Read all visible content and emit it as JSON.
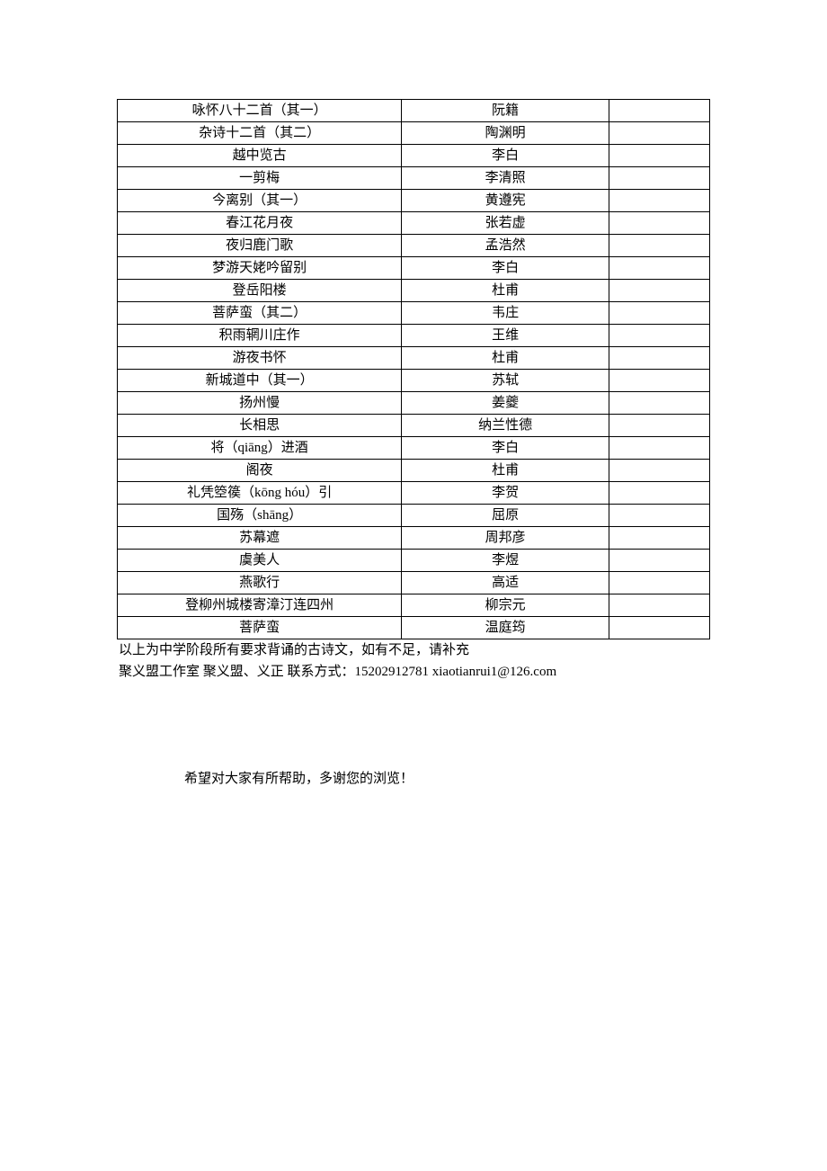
{
  "table": {
    "colors": {
      "border": "#000000",
      "background": "#ffffff",
      "text": "#000000"
    },
    "font_size": 15,
    "rows": [
      {
        "title": "咏怀八十二首（其一）",
        "author": "阮籍",
        "extra": ""
      },
      {
        "title": "杂诗十二首（其二）",
        "author": "陶渊明",
        "extra": ""
      },
      {
        "title": "越中览古",
        "author": "李白",
        "extra": ""
      },
      {
        "title": "一剪梅",
        "author": "李清照",
        "extra": ""
      },
      {
        "title": "今离别（其一）",
        "author": "黄遵宪",
        "extra": ""
      },
      {
        "title": "春江花月夜",
        "author": "张若虚",
        "extra": ""
      },
      {
        "title": "夜归鹿门歌",
        "author": "孟浩然",
        "extra": ""
      },
      {
        "title": "梦游天姥吟留别",
        "author": "李白",
        "extra": ""
      },
      {
        "title": "登岳阳楼",
        "author": "杜甫",
        "extra": ""
      },
      {
        "title": "菩萨蛮（其二）",
        "author": "韦庄",
        "extra": ""
      },
      {
        "title": "积雨辋川庄作",
        "author": "王维",
        "extra": ""
      },
      {
        "title": "游夜书怀",
        "author": "杜甫",
        "extra": ""
      },
      {
        "title": "新城道中（其一）",
        "author": "苏轼",
        "extra": ""
      },
      {
        "title": "扬州慢",
        "author": "姜夔",
        "extra": ""
      },
      {
        "title": "长相思",
        "author": "纳兰性德",
        "extra": ""
      },
      {
        "title": "将（qiāng）进酒",
        "author": "李白",
        "extra": ""
      },
      {
        "title": "阁夜",
        "author": "杜甫",
        "extra": ""
      },
      {
        "title": "礼凭箜篌（kōng hóu）引",
        "author": "李贺",
        "extra": ""
      },
      {
        "title": "国殇（shāng）",
        "author": "屈原",
        "extra": ""
      },
      {
        "title": "苏幕遮",
        "author": "周邦彦",
        "extra": ""
      },
      {
        "title": "虞美人",
        "author": "李煜",
        "extra": ""
      },
      {
        "title": "燕歌行",
        "author": "高适",
        "extra": ""
      },
      {
        "title": "登柳州城楼寄漳汀连四州",
        "author": "柳宗元",
        "extra": ""
      },
      {
        "title": "菩萨蛮",
        "author": "温庭筠",
        "extra": ""
      }
    ]
  },
  "notes": {
    "line1": "以上为中学阶段所有要求背诵的古诗文，如有不足，请补充",
    "line2": "聚义盟工作室 聚义盟、义正 联系方式：15202912781 xiaotianrui1@126.com"
  },
  "closing": "希望对大家有所帮助，多谢您的浏览！"
}
